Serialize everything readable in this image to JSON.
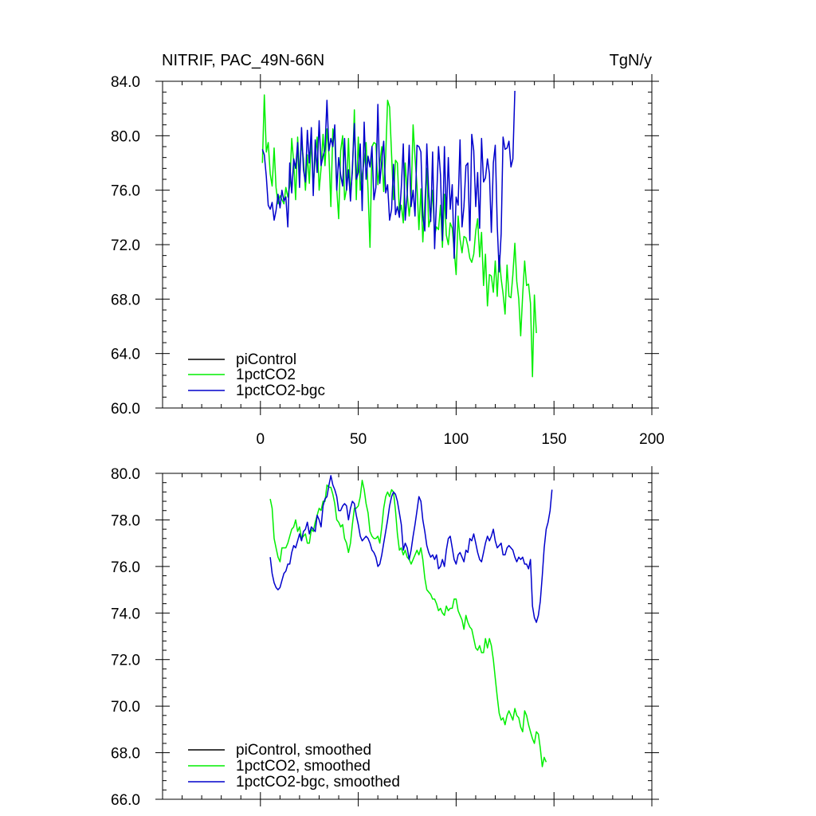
{
  "chart_data": [
    {
      "type": "line",
      "title": "NITRIF, PAC_49N-66N",
      "units": "TgN/y",
      "xlim": [
        -50,
        200
      ],
      "ylim": [
        60,
        84
      ],
      "xticks": [
        0,
        50,
        100,
        150,
        200
      ],
      "xtick_labels": [
        "0",
        "50",
        "100",
        "150",
        "200"
      ],
      "yticks": [
        60,
        64,
        68,
        72,
        76,
        80,
        84
      ],
      "ytick_labels": [
        "60.0",
        "64.0",
        "68.0",
        "72.0",
        "76.0",
        "80.0",
        "84.0"
      ],
      "legend_position": "bottom-left",
      "legend": [
        "piControl",
        "1pctCO2",
        "1pctCO2-bgc"
      ],
      "series": [
        {
          "name": "piControl",
          "color": "#000000",
          "x": [],
          "y": []
        },
        {
          "name": "1pctCO2",
          "color": "#00ee00",
          "x_start": 1,
          "y": [
            78.0,
            83.0,
            78.8,
            79.5,
            77.2,
            76.3,
            79.1,
            76.2,
            75.0,
            75.6,
            75.3,
            75.0,
            76.2,
            75.5,
            76.3,
            79.8,
            78.0,
            75.3,
            79.9,
            77.1,
            79.5,
            78.3,
            76.0,
            78.6,
            76.5,
            79.8,
            76.3,
            78.3,
            79.9,
            76.0,
            77.6,
            80.1,
            77.8,
            80.5,
            78.6,
            74.8,
            80.5,
            79.8,
            76.1,
            73.9,
            78.9,
            80.0,
            75.3,
            76.1,
            79.8,
            75.7,
            77.3,
            81.9,
            75.3,
            79.9,
            76.0,
            77.1,
            78.1,
            79.5,
            75.9,
            71.8,
            79.2,
            79.5,
            79.4,
            76.4,
            77.9,
            79.2,
            75.9,
            78.5,
            82.6,
            82.1,
            78.6,
            75.3,
            78.2,
            78.0,
            74.3,
            74.9,
            73.6,
            78.0,
            75.8,
            74.1,
            75.5,
            80.8,
            78.4,
            76.3,
            73.1,
            76.1,
            72.2,
            75.1,
            77.6,
            73.3,
            74.0,
            76.0,
            72.7,
            73.3,
            73.1,
            74.9,
            71.8,
            75.7,
            72.7,
            72.0,
            73.6,
            73.2,
            71.6,
            69.8,
            74.1,
            72.4,
            71.4,
            72.6,
            72.5,
            71.9,
            71.0,
            70.7,
            71.3,
            73.0,
            73.9,
            71.1,
            72.9,
            69.0,
            71.3,
            67.5,
            69.8,
            69.7,
            68.5,
            70.8,
            68.2,
            71.2,
            69.5,
            68.4,
            66.9,
            70.5,
            68.2,
            68.1,
            69.8,
            72.1,
            69.3,
            68.0,
            65.3,
            68.3,
            70.8,
            69.0,
            69.1,
            67.7,
            62.3,
            68.3,
            65.5
          ]
        },
        {
          "name": "1pctCO2-bgc",
          "color": "#0000cc",
          "x_start": 1,
          "y": [
            79.0,
            78.6,
            77.0,
            74.9,
            74.6,
            75.1,
            73.8,
            74.5,
            75.7,
            74.7,
            76.0,
            75.2,
            75.5,
            73.3,
            78.0,
            75.8,
            78.3,
            77.6,
            79.5,
            76.2,
            80.6,
            77.5,
            76.6,
            80.4,
            78.0,
            80.6,
            75.6,
            79.7,
            77.3,
            81.1,
            77.8,
            78.5,
            79.0,
            82.6,
            78.9,
            79.8,
            79.2,
            80.8,
            76.0,
            78.4,
            77.1,
            76.3,
            79.8,
            76.0,
            77.5,
            75.2,
            77.6,
            80.9,
            76.8,
            77.3,
            79.4,
            74.5,
            81.0,
            76.8,
            78.5,
            77.7,
            79.2,
            75.3,
            76.2,
            82.3,
            76.5,
            78.2,
            79.6,
            75.8,
            76.4,
            73.8,
            74.6,
            77.9,
            74.2,
            74.8,
            74.0,
            76.2,
            79.4,
            73.8,
            75.7,
            79.3,
            74.8,
            76.0,
            74.1,
            79.3,
            79.2,
            78.8,
            74.1,
            73.0,
            79.4,
            75.8,
            73.7,
            78.8,
            71.7,
            75.3,
            79.2,
            77.1,
            72.3,
            79.2,
            73.9,
            78.4,
            74.6,
            76.4,
            71.0,
            75.5,
            74.9,
            79.7,
            73.3,
            74.8,
            77.8,
            78.0,
            72.3,
            80.1,
            78.9,
            74.8,
            77.3,
            73.2,
            79.8,
            76.6,
            76.9,
            78.3,
            77.2,
            72.9,
            78.0,
            79.3,
            73.4,
            70.0,
            72.8,
            79.9,
            79.0,
            79.1,
            79.6,
            77.7,
            78.3,
            83.3
          ]
        }
      ]
    },
    {
      "type": "line",
      "xlim": [
        -50,
        200
      ],
      "ylim": [
        66,
        80
      ],
      "xticks": [
        0,
        50,
        100,
        150,
        200
      ],
      "yticks": [
        66,
        68,
        70,
        72,
        74,
        76,
        78,
        80
      ],
      "ytick_labels": [
        "66.0",
        "68.0",
        "70.0",
        "72.0",
        "74.0",
        "76.0",
        "78.0",
        "80.0"
      ],
      "legend_position": "bottom-left",
      "legend": [
        "piControl, smoothed",
        "1pctCO2, smoothed",
        "1pctCO2-bgc, smoothed"
      ],
      "series": [
        {
          "name": "piControl, smoothed",
          "color": "#000000",
          "x": [],
          "y": []
        },
        {
          "name": "1pctCO2, smoothed",
          "color": "#00ee00",
          "x_start": 5,
          "y": [
            78.9,
            78.5,
            77.2,
            76.8,
            76.4,
            76.2,
            76.8,
            76.8,
            76.8,
            77.0,
            77.3,
            77.6,
            77.7,
            78.0,
            77.5,
            77.7,
            77.2,
            77.3,
            77.4,
            77.0,
            77.0,
            77.6,
            77.5,
            77.9,
            78.2,
            78.5,
            78.4,
            78.8,
            78.8,
            79.5,
            79.4,
            79.4,
            79.1,
            78.7,
            78.0,
            77.9,
            77.7,
            77.8,
            77.2,
            77.0,
            76.6,
            77.0,
            77.8,
            78.5,
            78.5,
            78.6,
            79.0,
            79.7,
            79.3,
            78.7,
            78.3,
            77.5,
            77.3,
            77.2,
            77.2,
            77.3,
            77.0,
            77.7,
            78.5,
            79.0,
            79.2,
            79.0,
            79.3,
            79.2,
            78.4,
            77.4,
            76.7,
            76.8,
            76.5,
            76.7,
            76.4,
            76.3,
            76.1,
            76.3,
            76.5,
            76.7,
            76.5,
            76.8,
            76.3,
            75.5,
            75.0,
            74.9,
            74.8,
            74.6,
            74.6,
            74.4,
            74.1,
            74.2,
            74.0,
            73.9,
            74.3,
            74.1,
            74.2,
            74.2,
            74.6,
            74.6,
            74.1,
            73.9,
            73.7,
            73.3,
            73.9,
            73.6,
            73.4,
            73.3,
            72.9,
            72.5,
            72.4,
            72.6,
            72.3,
            72.3,
            72.9,
            72.5,
            72.9,
            72.6,
            72.0,
            71.2,
            70.4,
            69.7,
            69.4,
            69.5,
            69.2,
            69.6,
            69.8,
            69.6,
            69.4,
            69.9,
            69.6,
            69.5,
            69.1,
            68.9,
            69.8,
            69.6,
            69.2,
            68.9,
            68.6,
            68.4,
            68.9,
            68.8,
            68.2,
            67.4,
            67.8,
            67.6
          ]
        },
        {
          "name": "1pctCO2-bgc, smoothed",
          "color": "#0000cc",
          "x_start": 5,
          "y": [
            76.4,
            75.7,
            75.3,
            75.1,
            75.0,
            75.1,
            75.4,
            75.7,
            75.8,
            76.1,
            76.1,
            76.6,
            76.9,
            76.8,
            77.1,
            77.4,
            77.1,
            77.5,
            77.6,
            77.9,
            77.4,
            77.7,
            77.6,
            77.5,
            78.2,
            78.0,
            77.7,
            78.6,
            78.9,
            79.0,
            79.5,
            79.9,
            79.5,
            79.3,
            79.0,
            78.4,
            78.4,
            78.6,
            78.7,
            78.6,
            78.0,
            78.5,
            78.8,
            78.7,
            78.2,
            77.8,
            77.3,
            77.1,
            77.2,
            77.3,
            77.2,
            77.0,
            76.7,
            76.6,
            76.4,
            76.0,
            76.1,
            76.5,
            77.0,
            77.5,
            78.0,
            78.6,
            79.0,
            79.2,
            79.1,
            78.8,
            78.3,
            77.8,
            76.7,
            77.0,
            76.8,
            76.3,
            76.7,
            77.3,
            77.8,
            78.4,
            79.0,
            78.8,
            78.0,
            77.5,
            76.9,
            76.6,
            76.4,
            76.5,
            76.3,
            76.5,
            75.9,
            76.0,
            76.3,
            76.0,
            76.7,
            77.2,
            77.3,
            76.8,
            76.3,
            76.1,
            76.5,
            76.6,
            76.4,
            76.2,
            76.7,
            76.6,
            77.2,
            77.1,
            77.4,
            77.0,
            76.6,
            76.3,
            76.2,
            76.6,
            77.0,
            77.3,
            77.1,
            77.3,
            77.6,
            77.1,
            76.8,
            76.9,
            77.0,
            76.5,
            76.5,
            76.8,
            76.9,
            76.8,
            76.7,
            76.4,
            76.2,
            76.4,
            76.3,
            76.4,
            76.1,
            76.1,
            75.9,
            76.3,
            74.3,
            73.8,
            73.6,
            73.9,
            74.5,
            75.6,
            76.8,
            77.6,
            77.9,
            78.4,
            79.3
          ]
        }
      ]
    }
  ]
}
